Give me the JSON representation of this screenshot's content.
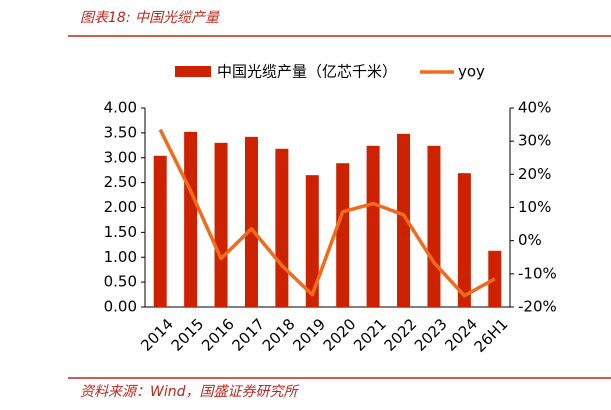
{
  "chart_data": {
    "type": "bar_line",
    "title": "图表18:  中国光缆产量",
    "source": "资料来源：Wind，国盛证券研究所",
    "categories": [
      "2014",
      "2015",
      "2016",
      "2017",
      "2018",
      "2019",
      "2020",
      "2021",
      "2022",
      "2023",
      "2024",
      "26H1"
    ],
    "series": [
      {
        "name": "中国光缆产量（亿芯千米）",
        "type": "bar",
        "color": "#cc2200",
        "values": [
          3.04,
          3.52,
          3.3,
          3.42,
          3.18,
          2.65,
          2.89,
          3.24,
          3.48,
          3.24,
          2.69,
          1.13
        ]
      },
      {
        "name": "yoy",
        "type": "line",
        "axis": "y2",
        "color": "#f26a1b",
        "values": [
          33.5,
          15,
          -5.4,
          3.6,
          -7.5,
          -16.3,
          8.7,
          11.2,
          7.8,
          -6.6,
          -16.6,
          -11.5
        ]
      }
    ],
    "ylim": [
      0,
      4
    ],
    "yticks": [
      {
        "value": 0,
        "label": "0.00"
      },
      {
        "value": 0.5,
        "label": "0.50"
      },
      {
        "value": 1,
        "label": "1.00"
      },
      {
        "value": 1.5,
        "label": "1.50"
      },
      {
        "value": 2,
        "label": "2.00"
      },
      {
        "value": 2.5,
        "label": "2.50"
      },
      {
        "value": 3,
        "label": "3.00"
      },
      {
        "value": 3.5,
        "label": "3.50"
      },
      {
        "value": 4,
        "label": "4.00"
      }
    ],
    "y2lim": [
      -20,
      40
    ],
    "y2ticks": [
      {
        "value": -20,
        "label": "-20%"
      },
      {
        "value": -10,
        "label": "-10%"
      },
      {
        "value": 0,
        "label": "0%"
      },
      {
        "value": 10,
        "label": "10%"
      },
      {
        "value": 20,
        "label": "20%"
      },
      {
        "value": 30,
        "label": "30%"
      },
      {
        "value": 40,
        "label": "40%"
      }
    ]
  }
}
